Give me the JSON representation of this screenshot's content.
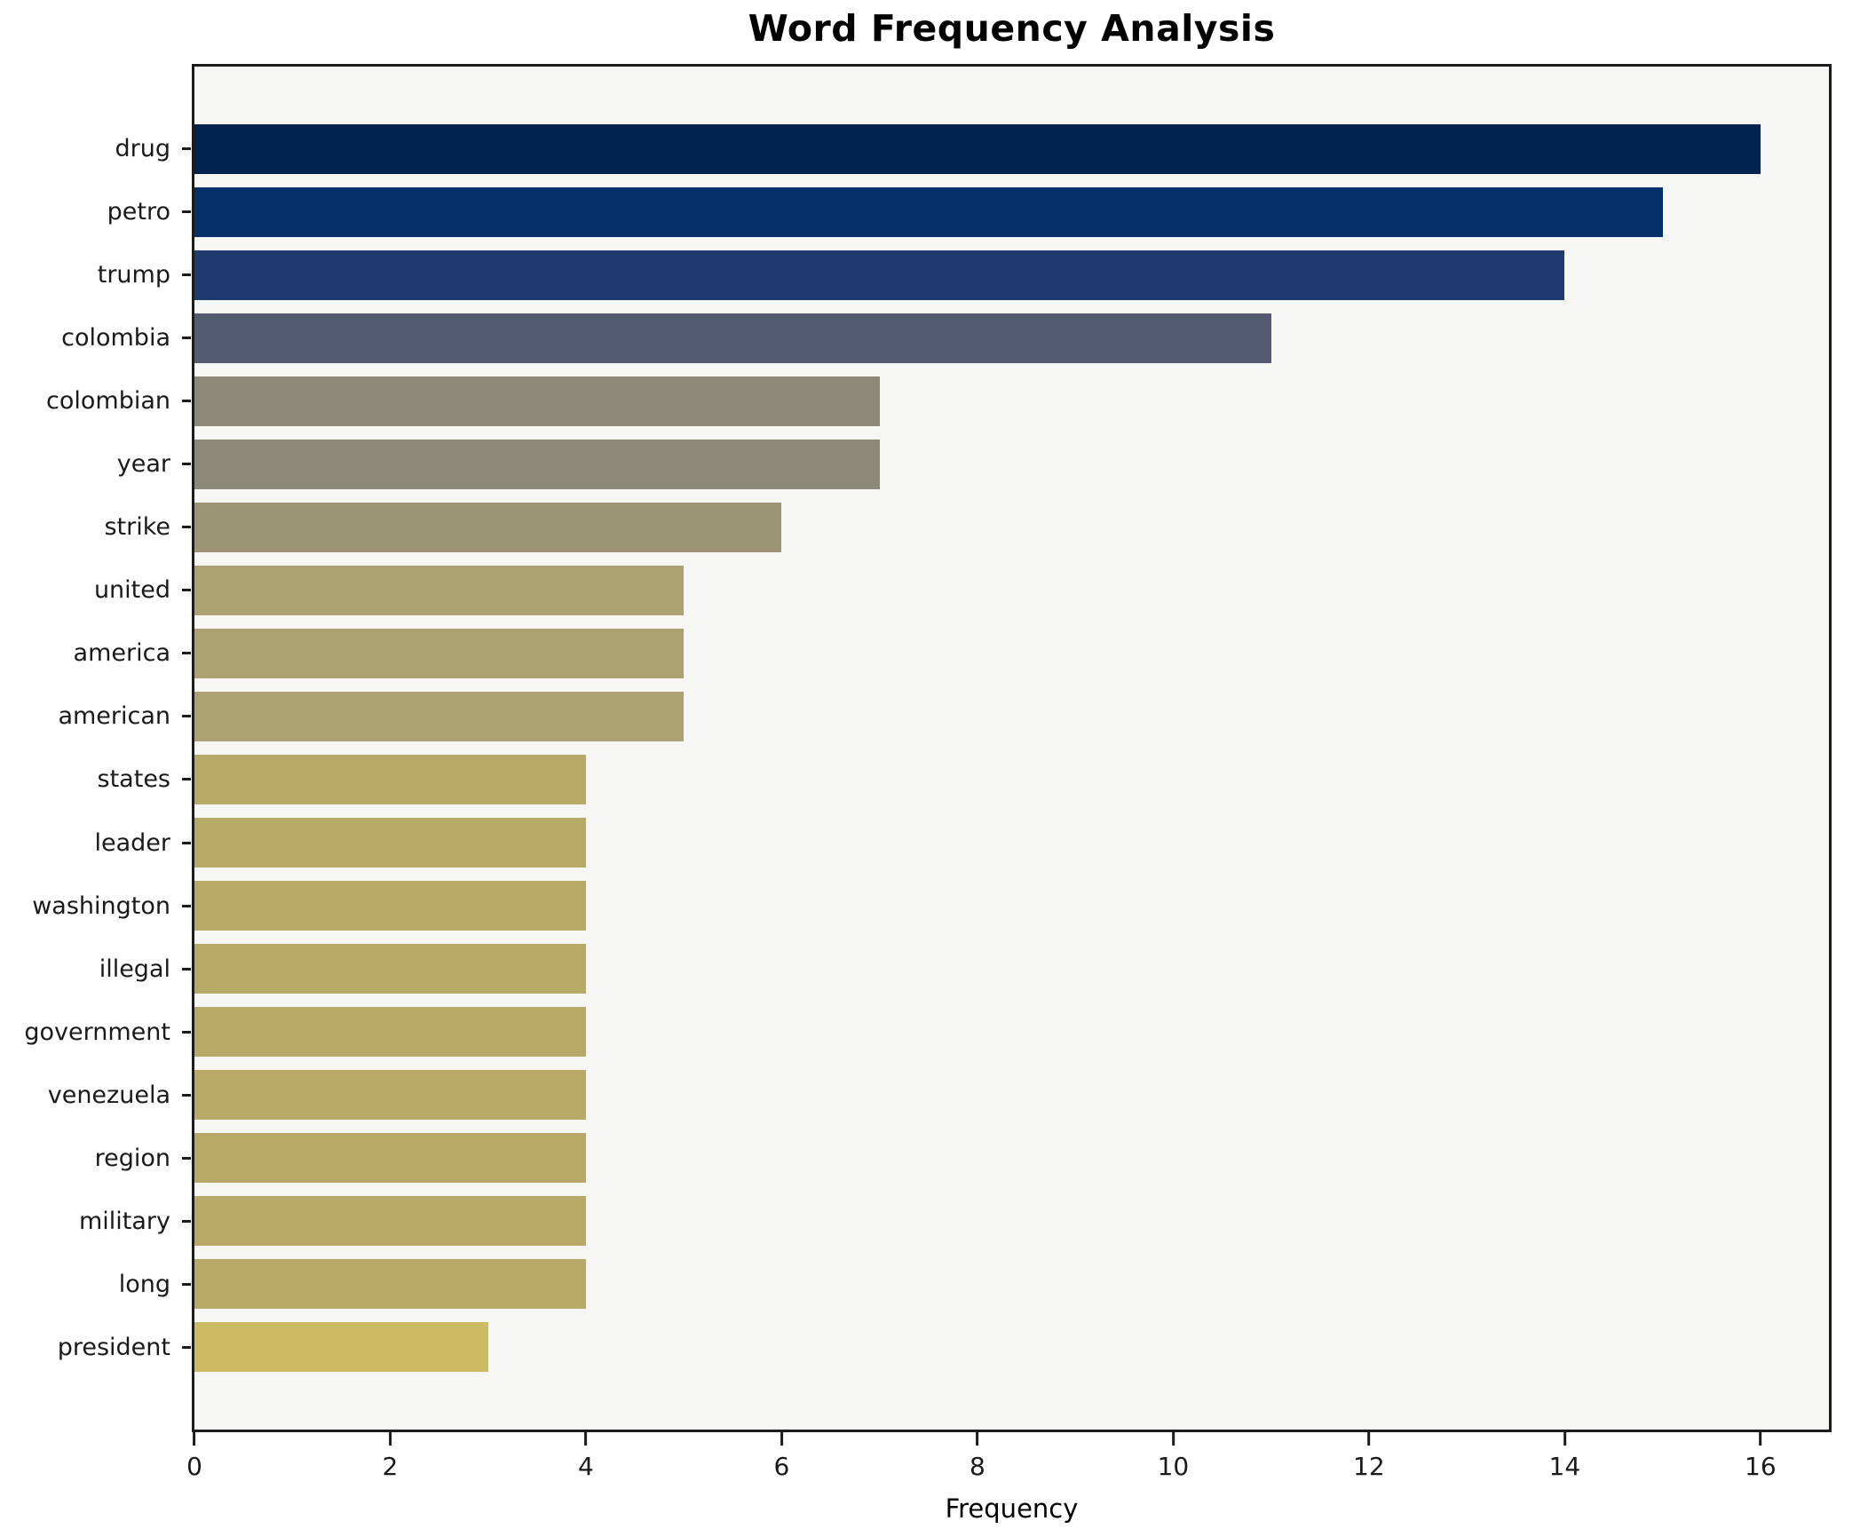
{
  "chart_data": {
    "type": "bar",
    "orientation": "horizontal",
    "title": "Word Frequency Analysis",
    "xlabel": "Frequency",
    "ylabel": "",
    "categories": [
      "drug",
      "petro",
      "trump",
      "colombia",
      "colombian",
      "year",
      "strike",
      "united",
      "america",
      "american",
      "states",
      "leader",
      "washington",
      "illegal",
      "government",
      "venezuela",
      "region",
      "military",
      "long",
      "president"
    ],
    "values": [
      16,
      15,
      14,
      11,
      7,
      7,
      6,
      5,
      5,
      5,
      4,
      4,
      4,
      4,
      4,
      4,
      4,
      4,
      4,
      3
    ],
    "bar_colors": [
      "#00234f",
      "#063069",
      "#1e3a6e",
      "#555b70",
      "#8b8a79",
      "#8b8a79",
      "#9b9576",
      "#aba171",
      "#aba171",
      "#aba171",
      "#b7aa69",
      "#b7aa69",
      "#b7aa69",
      "#b7aa69",
      "#b7aa69",
      "#b7aa69",
      "#b7aa69",
      "#b7aa69",
      "#b7aa69",
      "#ccbb62"
    ],
    "xticks": [
      0,
      2,
      4,
      6,
      8,
      10,
      12,
      14,
      16
    ],
    "xlim": [
      0,
      16.7
    ],
    "grid": false,
    "legend": "none",
    "plot_background": "#f6f6f5",
    "figure_background": "#ffffff",
    "spine_color": "#1c1c1c"
  }
}
